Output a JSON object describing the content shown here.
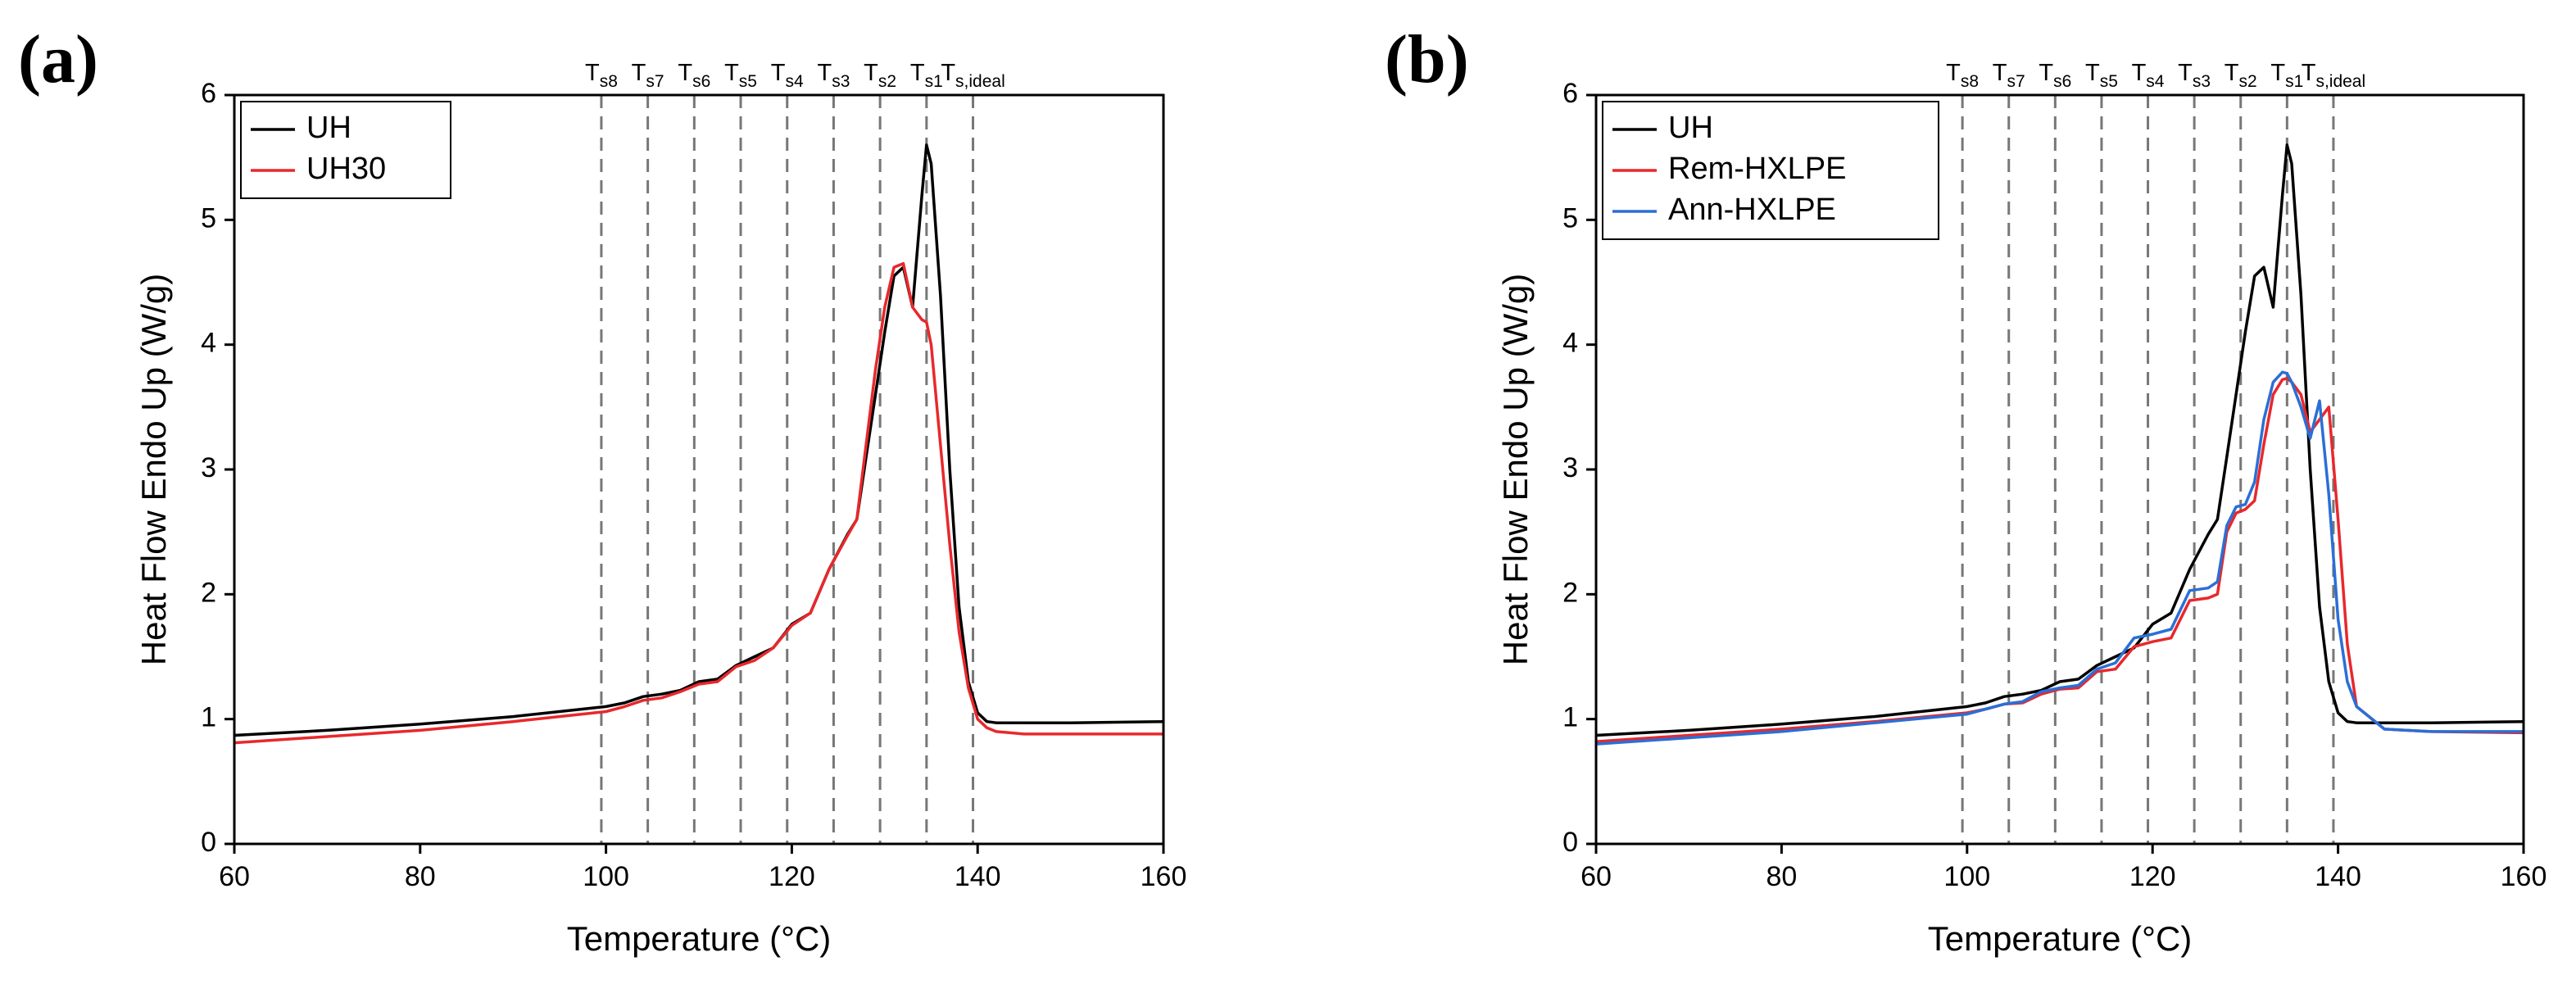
{
  "chart_data": [
    {
      "type": "line",
      "panel_label": "(a)",
      "xlabel": "Temperature (°C)",
      "ylabel": "Heat Flow Endo Up (W/g)",
      "xlim": [
        60,
        160
      ],
      "ylim": [
        0,
        6
      ],
      "xticks": [
        60,
        80,
        100,
        120,
        140,
        160
      ],
      "yticks": [
        0,
        1,
        2,
        3,
        4,
        5,
        6
      ],
      "legend": "upper left",
      "markers": [
        {
          "value": 99.5,
          "label": "T",
          "sub": "s8"
        },
        {
          "value": 104.5,
          "label": "T",
          "sub": "s7"
        },
        {
          "value": 109.5,
          "label": "T",
          "sub": "s6"
        },
        {
          "value": 114.5,
          "label": "T",
          "sub": "s5"
        },
        {
          "value": 119.5,
          "label": "T",
          "sub": "s4"
        },
        {
          "value": 124.5,
          "label": "T",
          "sub": "s3"
        },
        {
          "value": 129.5,
          "label": "T",
          "sub": "s2"
        },
        {
          "value": 134.5,
          "label": "T",
          "sub": "s1"
        },
        {
          "value": 139.5,
          "label": "T",
          "sub": "s,ideal"
        }
      ],
      "x": [
        60,
        70,
        80,
        90,
        100,
        102,
        104,
        106,
        108,
        110,
        112,
        114,
        116,
        118,
        120,
        122,
        124,
        126,
        127,
        128,
        129,
        130,
        131,
        132,
        133,
        134,
        134.5,
        135,
        136,
        137,
        138,
        139,
        140,
        141,
        142,
        145,
        150,
        160
      ],
      "series": [
        {
          "name": "UH",
          "color": "#000000",
          "values": [
            0.87,
            0.91,
            0.96,
            1.02,
            1.1,
            1.13,
            1.18,
            1.2,
            1.23,
            1.3,
            1.32,
            1.43,
            1.5,
            1.57,
            1.76,
            1.85,
            2.2,
            2.48,
            2.6,
            3.1,
            3.6,
            4.1,
            4.55,
            4.62,
            4.3,
            5.2,
            5.6,
            5.45,
            4.4,
            3.0,
            1.9,
            1.3,
            1.05,
            0.98,
            0.97,
            0.97,
            0.97,
            0.98
          ]
        },
        {
          "name": "UH30",
          "color": "#e8282c",
          "values": [
            0.81,
            0.86,
            0.91,
            0.98,
            1.06,
            1.1,
            1.15,
            1.17,
            1.22,
            1.28,
            1.3,
            1.42,
            1.47,
            1.57,
            1.75,
            1.85,
            2.2,
            2.47,
            2.6,
            3.2,
            3.8,
            4.3,
            4.62,
            4.65,
            4.3,
            4.2,
            4.18,
            4.0,
            3.2,
            2.4,
            1.7,
            1.25,
            1.0,
            0.93,
            0.9,
            0.88,
            0.88,
            0.88
          ]
        }
      ]
    },
    {
      "type": "line",
      "panel_label": "(b)",
      "xlabel": "Temperature (°C)",
      "ylabel": "Heat Flow Endo Up (W/g)",
      "xlim": [
        60,
        160
      ],
      "ylim": [
        0,
        6
      ],
      "xticks": [
        60,
        80,
        100,
        120,
        140,
        160
      ],
      "yticks": [
        0,
        1,
        2,
        3,
        4,
        5,
        6
      ],
      "legend": "upper left",
      "markers": [
        {
          "value": 99.5,
          "label": "T",
          "sub": "s8"
        },
        {
          "value": 104.5,
          "label": "T",
          "sub": "s7"
        },
        {
          "value": 109.5,
          "label": "T",
          "sub": "s6"
        },
        {
          "value": 114.5,
          "label": "T",
          "sub": "s5"
        },
        {
          "value": 119.5,
          "label": "T",
          "sub": "s4"
        },
        {
          "value": 124.5,
          "label": "T",
          "sub": "s3"
        },
        {
          "value": 129.5,
          "label": "T",
          "sub": "s2"
        },
        {
          "value": 134.5,
          "label": "T",
          "sub": "s1"
        },
        {
          "value": 139.5,
          "label": "T",
          "sub": "s,ideal"
        }
      ],
      "x": [
        60,
        70,
        80,
        90,
        100,
        102,
        104,
        106,
        108,
        110,
        112,
        114,
        116,
        118,
        120,
        122,
        124,
        126,
        127,
        128,
        129,
        130,
        131,
        132,
        133,
        134,
        134.5,
        135,
        136,
        137,
        138,
        139,
        140,
        141,
        142,
        145,
        150,
        160
      ],
      "series": [
        {
          "name": "UH",
          "color": "#000000",
          "values": [
            0.87,
            0.91,
            0.96,
            1.02,
            1.1,
            1.13,
            1.18,
            1.2,
            1.23,
            1.3,
            1.32,
            1.43,
            1.5,
            1.57,
            1.76,
            1.85,
            2.2,
            2.48,
            2.6,
            3.1,
            3.6,
            4.1,
            4.55,
            4.62,
            4.3,
            5.2,
            5.6,
            5.45,
            4.4,
            3.0,
            1.9,
            1.3,
            1.05,
            0.98,
            0.97,
            0.97,
            0.97,
            0.98
          ]
        },
        {
          "name": "Rem-HXLPE",
          "color": "#e8282c",
          "values": [
            0.82,
            0.87,
            0.92,
            0.98,
            1.05,
            1.08,
            1.12,
            1.13,
            1.2,
            1.24,
            1.25,
            1.38,
            1.4,
            1.58,
            1.62,
            1.65,
            1.95,
            1.97,
            2.0,
            2.5,
            2.65,
            2.68,
            2.75,
            3.2,
            3.6,
            3.72,
            3.73,
            3.7,
            3.6,
            3.3,
            3.4,
            3.5,
            2.6,
            1.6,
            1.1,
            0.92,
            0.9,
            0.89
          ]
        },
        {
          "name": "Ann-HXLPE",
          "color": "#2a6fd6",
          "values": [
            0.8,
            0.85,
            0.9,
            0.97,
            1.04,
            1.08,
            1.12,
            1.14,
            1.22,
            1.25,
            1.27,
            1.4,
            1.45,
            1.65,
            1.68,
            1.72,
            2.03,
            2.05,
            2.1,
            2.55,
            2.7,
            2.72,
            2.9,
            3.4,
            3.7,
            3.78,
            3.77,
            3.7,
            3.5,
            3.25,
            3.55,
            2.8,
            1.8,
            1.3,
            1.1,
            0.92,
            0.9,
            0.9
          ]
        }
      ]
    }
  ]
}
